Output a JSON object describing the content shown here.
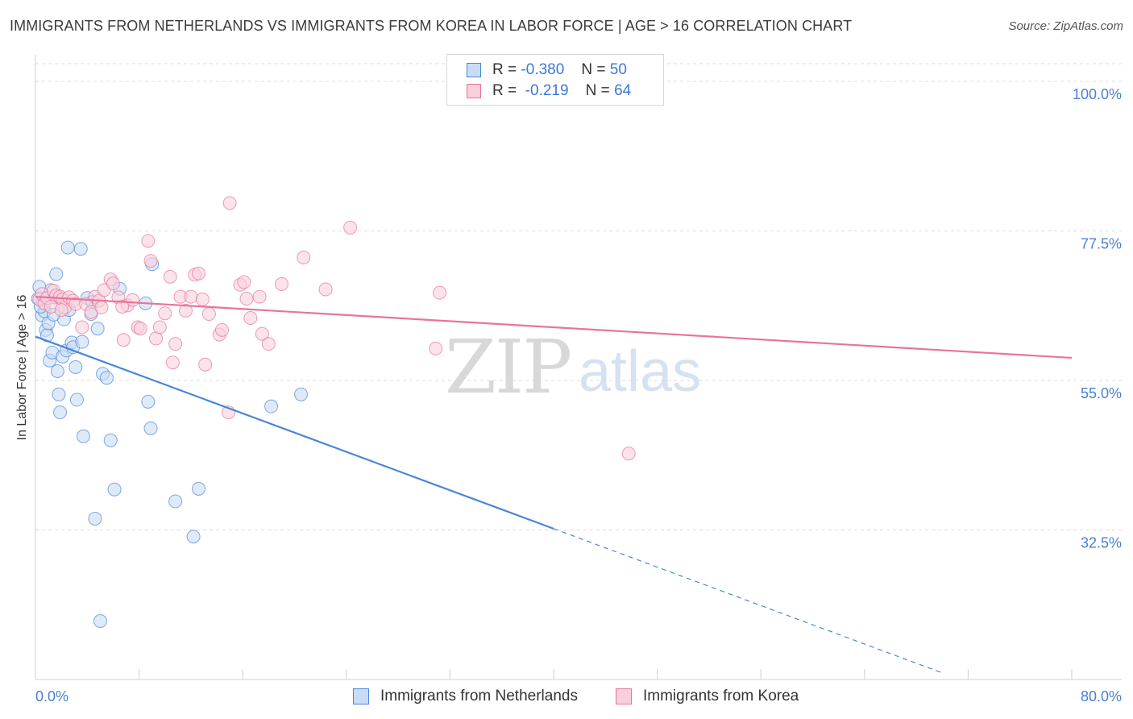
{
  "title": "IMMIGRANTS FROM NETHERLANDS VS IMMIGRANTS FROM KOREA IN LABOR FORCE | AGE > 16 CORRELATION CHART",
  "source": "Source: ZipAtlas.com",
  "watermark": {
    "zip": "ZIP",
    "atlas": "atlas"
  },
  "legend": {
    "rows": [
      {
        "r_label": "R =",
        "r_value": "-0.380",
        "n_label": "N =",
        "n_value": "50"
      },
      {
        "r_label": "R =",
        "r_value": "-0.219",
        "n_label": "N =",
        "n_value": "64"
      }
    ]
  },
  "chart_data": {
    "type": "scatter",
    "xlabel": "",
    "ylabel": "In Labor Force | Age > 16",
    "xlim": [
      0,
      80
    ],
    "ylim": [
      10,
      104
    ],
    "x_tick_labels": [
      "0.0%",
      "80.0%"
    ],
    "y_ticks": [
      32.5,
      55.0,
      77.5,
      100.0
    ],
    "y_tick_labels": [
      "32.5%",
      "55.0%",
      "77.5%",
      "100.0%"
    ],
    "grid": true,
    "colors": {
      "netherlands": "#4a86d8",
      "korea": "#e8749a",
      "netherlands_fill": "#c9dcf5",
      "korea_fill": "#f8d0dc"
    },
    "series": [
      {
        "name": "Immigrants from Netherlands",
        "r": -0.38,
        "n": 50,
        "trend": {
          "x0": 0,
          "y0": 61.6,
          "x1": 40,
          "y1": 32.7,
          "dash_x1": 70,
          "dash_y1": 11.0
        },
        "points": [
          [
            0.3,
            69.1
          ],
          [
            0.5,
            64.8
          ],
          [
            0.6,
            66.8
          ],
          [
            0.7,
            65.4
          ],
          [
            0.8,
            62.6
          ],
          [
            0.9,
            61.8
          ],
          [
            1.0,
            63.6
          ],
          [
            1.1,
            58.0
          ],
          [
            1.2,
            68.6
          ],
          [
            1.3,
            59.2
          ],
          [
            1.5,
            67.5
          ],
          [
            1.7,
            56.4
          ],
          [
            1.8,
            52.9
          ],
          [
            1.9,
            50.2
          ],
          [
            2.1,
            58.6
          ],
          [
            2.2,
            64.2
          ],
          [
            2.4,
            59.5
          ],
          [
            2.5,
            75.0
          ],
          [
            2.6,
            65.6
          ],
          [
            2.8,
            60.7
          ],
          [
            2.9,
            60.0
          ],
          [
            3.1,
            57.0
          ],
          [
            3.2,
            52.1
          ],
          [
            3.5,
            74.8
          ],
          [
            3.6,
            60.8
          ],
          [
            3.7,
            46.6
          ],
          [
            4.0,
            67.4
          ],
          [
            4.3,
            65.0
          ],
          [
            4.4,
            66.8
          ],
          [
            4.6,
            34.2
          ],
          [
            4.8,
            62.8
          ],
          [
            5.2,
            56.0
          ],
          [
            5.5,
            55.4
          ],
          [
            5.8,
            46.0
          ],
          [
            6.1,
            38.6
          ],
          [
            6.5,
            68.8
          ],
          [
            8.5,
            66.6
          ],
          [
            8.7,
            51.8
          ],
          [
            8.9,
            47.8
          ],
          [
            9.0,
            72.5
          ],
          [
            10.8,
            36.8
          ],
          [
            12.2,
            31.5
          ],
          [
            12.6,
            38.7
          ],
          [
            18.2,
            51.1
          ],
          [
            20.5,
            52.9
          ],
          [
            1.4,
            64.9
          ],
          [
            0.2,
            67.3
          ],
          [
            0.4,
            66.1
          ],
          [
            1.6,
            71.0
          ],
          [
            5.0,
            18.8
          ]
        ]
      },
      {
        "name": "Immigrants from Korea",
        "r": -0.219,
        "n": 64,
        "trend": {
          "x0": 0,
          "y0": 67.6,
          "x1": 80,
          "y1": 58.4
        },
        "points": [
          [
            0.3,
            67.2
          ],
          [
            0.5,
            68.0
          ],
          [
            0.7,
            66.6
          ],
          [
            0.9,
            67.4
          ],
          [
            1.2,
            66.1
          ],
          [
            1.4,
            68.5
          ],
          [
            1.6,
            67.8
          ],
          [
            1.9,
            67.6
          ],
          [
            2.1,
            67.2
          ],
          [
            2.3,
            66.0
          ],
          [
            2.6,
            67.5
          ],
          [
            2.9,
            67.0
          ],
          [
            3.1,
            66.5
          ],
          [
            3.6,
            63.0
          ],
          [
            3.9,
            66.5
          ],
          [
            4.3,
            65.3
          ],
          [
            4.6,
            67.6
          ],
          [
            4.9,
            67.0
          ],
          [
            5.1,
            66.0
          ],
          [
            5.3,
            68.6
          ],
          [
            5.8,
            70.2
          ],
          [
            6.0,
            69.6
          ],
          [
            6.4,
            67.5
          ],
          [
            6.8,
            61.1
          ],
          [
            7.1,
            66.3
          ],
          [
            7.5,
            67.1
          ],
          [
            7.9,
            63.0
          ],
          [
            8.1,
            62.8
          ],
          [
            8.7,
            76.0
          ],
          [
            8.9,
            73.0
          ],
          [
            9.3,
            61.3
          ],
          [
            9.6,
            63.0
          ],
          [
            10.0,
            65.1
          ],
          [
            10.4,
            70.6
          ],
          [
            10.6,
            57.7
          ],
          [
            10.8,
            60.5
          ],
          [
            11.2,
            67.6
          ],
          [
            11.6,
            65.5
          ],
          [
            12.0,
            67.6
          ],
          [
            12.3,
            70.9
          ],
          [
            12.6,
            71.1
          ],
          [
            12.9,
            67.2
          ],
          [
            13.1,
            57.4
          ],
          [
            13.4,
            65.0
          ],
          [
            14.2,
            61.9
          ],
          [
            14.4,
            62.6
          ],
          [
            15.0,
            81.7
          ],
          [
            15.8,
            69.4
          ],
          [
            16.1,
            69.8
          ],
          [
            16.3,
            67.3
          ],
          [
            16.6,
            64.4
          ],
          [
            17.3,
            67.6
          ],
          [
            17.5,
            62.0
          ],
          [
            18.0,
            60.5
          ],
          [
            19.0,
            69.5
          ],
          [
            20.7,
            73.5
          ],
          [
            22.4,
            68.7
          ],
          [
            24.3,
            78.0
          ],
          [
            30.9,
            59.8
          ],
          [
            31.2,
            68.2
          ],
          [
            45.8,
            44.0
          ],
          [
            14.9,
            50.2
          ],
          [
            6.7,
            66.1
          ],
          [
            2.0,
            65.6
          ]
        ]
      }
    ]
  },
  "bottom_legend": [
    {
      "label": "Immigrants from Netherlands"
    },
    {
      "label": "Immigrants from Korea"
    }
  ]
}
